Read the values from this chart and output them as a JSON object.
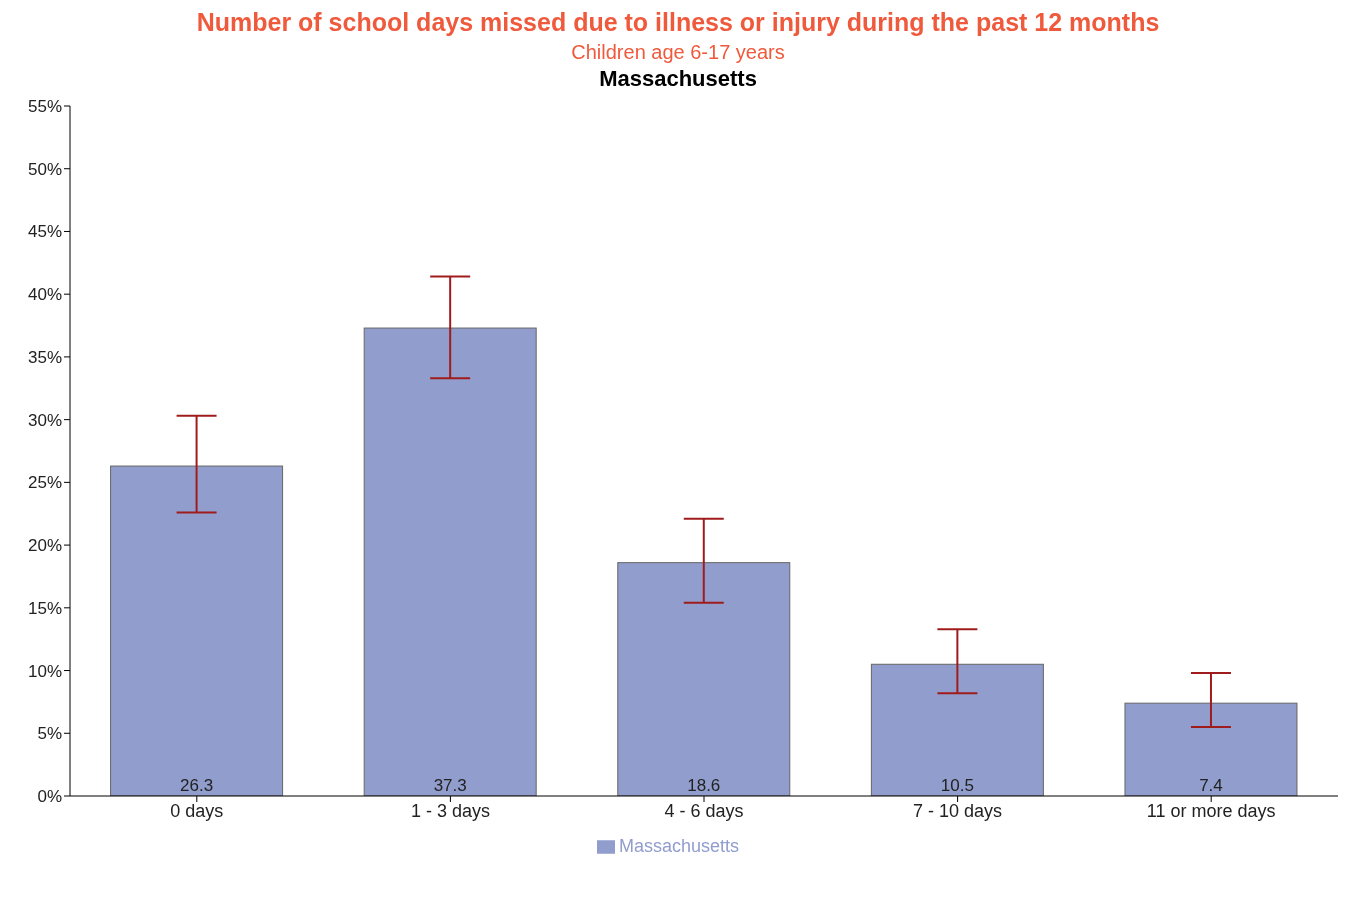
{
  "chart_data": {
    "type": "bar",
    "title": "Number of school days missed due to illness or injury during the past 12 months",
    "subtitle": "Children age 6-17 years",
    "annotations": [
      "Massachusetts"
    ],
    "categories": [
      "0 days",
      "1 - 3 days",
      "4 - 6 days",
      "7 - 10 days",
      "11 or more days"
    ],
    "series": [
      {
        "name": "Massachusetts",
        "color": "#919dcd",
        "values": [
          26.3,
          37.3,
          18.6,
          10.5,
          7.4
        ],
        "errors": [
          [
            22.6,
            30.3
          ],
          [
            33.3,
            41.4
          ],
          [
            15.4,
            22.1
          ],
          [
            8.2,
            13.3
          ],
          [
            5.5,
            9.8
          ]
        ]
      }
    ],
    "ylim": [
      0,
      55
    ],
    "yticks": [
      {
        "value": 0,
        "label": "0%"
      },
      {
        "value": 5,
        "label": "5%"
      },
      {
        "value": 10,
        "label": "10%"
      },
      {
        "value": 15,
        "label": "15%"
      },
      {
        "value": 20,
        "label": "20%"
      },
      {
        "value": 25,
        "label": "25%"
      },
      {
        "value": 30,
        "label": "30%"
      },
      {
        "value": 35,
        "label": "35%"
      },
      {
        "value": 40,
        "label": "40%"
      },
      {
        "value": 45,
        "label": "45%"
      },
      {
        "value": 50,
        "label": "50%"
      },
      {
        "value": 55,
        "label": "55%"
      }
    ],
    "data_labels": true,
    "legend": "bottom",
    "grid": false
  }
}
